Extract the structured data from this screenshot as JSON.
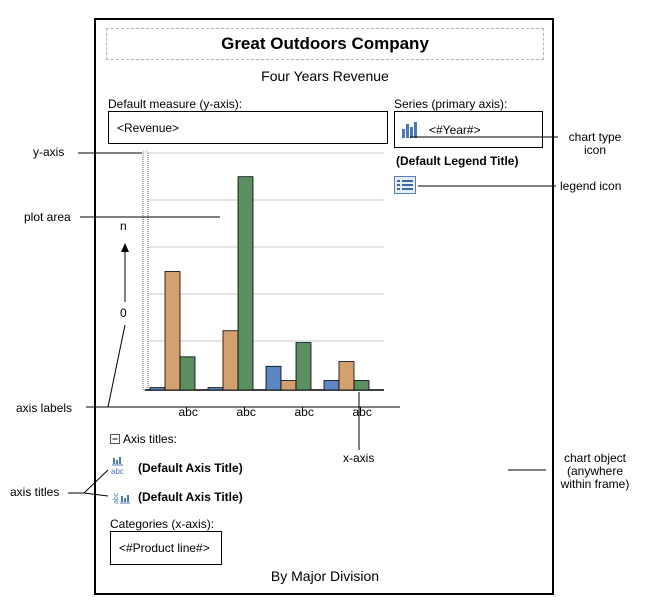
{
  "chart": {
    "title": "Great Outdoors Company",
    "subtitle": "Four Years Revenue",
    "footer": "By Major Division",
    "measure_label": "Default measure (y-axis):",
    "measure_value": "<Revenue>",
    "series_label": "Series (primary axis):",
    "series_value": "<#Year#>",
    "legend_title": "(Default Legend Title)",
    "axis_titles_label": "Axis titles:",
    "x_axis_title": "(Default Axis Title)",
    "y_axis_title": "(Default Axis Title)",
    "categories_label": "Categories (x-axis):",
    "categories_value": "<#Product line#>",
    "y_axis_top_label": "n",
    "y_axis_bottom_label": "0",
    "colors": {
      "blue": "#5b87c4",
      "orange": "#d4a06d",
      "green": "#5a8f5f"
    }
  },
  "chart_data": {
    "type": "bar",
    "categories": [
      "abc",
      "abc",
      "abc",
      "abc"
    ],
    "series": [
      {
        "values": [
          1,
          1,
          10,
          4
        ]
      },
      {
        "values": [
          50,
          25,
          4,
          12
        ]
      },
      {
        "values": [
          14,
          90,
          20,
          4
        ]
      }
    ],
    "ylim": [
      0,
      100
    ],
    "grid": true
  },
  "callouts": {
    "y_axis": "y-axis",
    "plot_area": "plot area",
    "axis_labels": "axis labels",
    "axis_titles": "axis titles",
    "x_axis": "x-axis",
    "chart_type_icon": [
      "chart type",
      "icon"
    ],
    "legend_icon": "legend icon",
    "chart_object": [
      "chart object",
      "(anywhere",
      "within frame)"
    ]
  }
}
